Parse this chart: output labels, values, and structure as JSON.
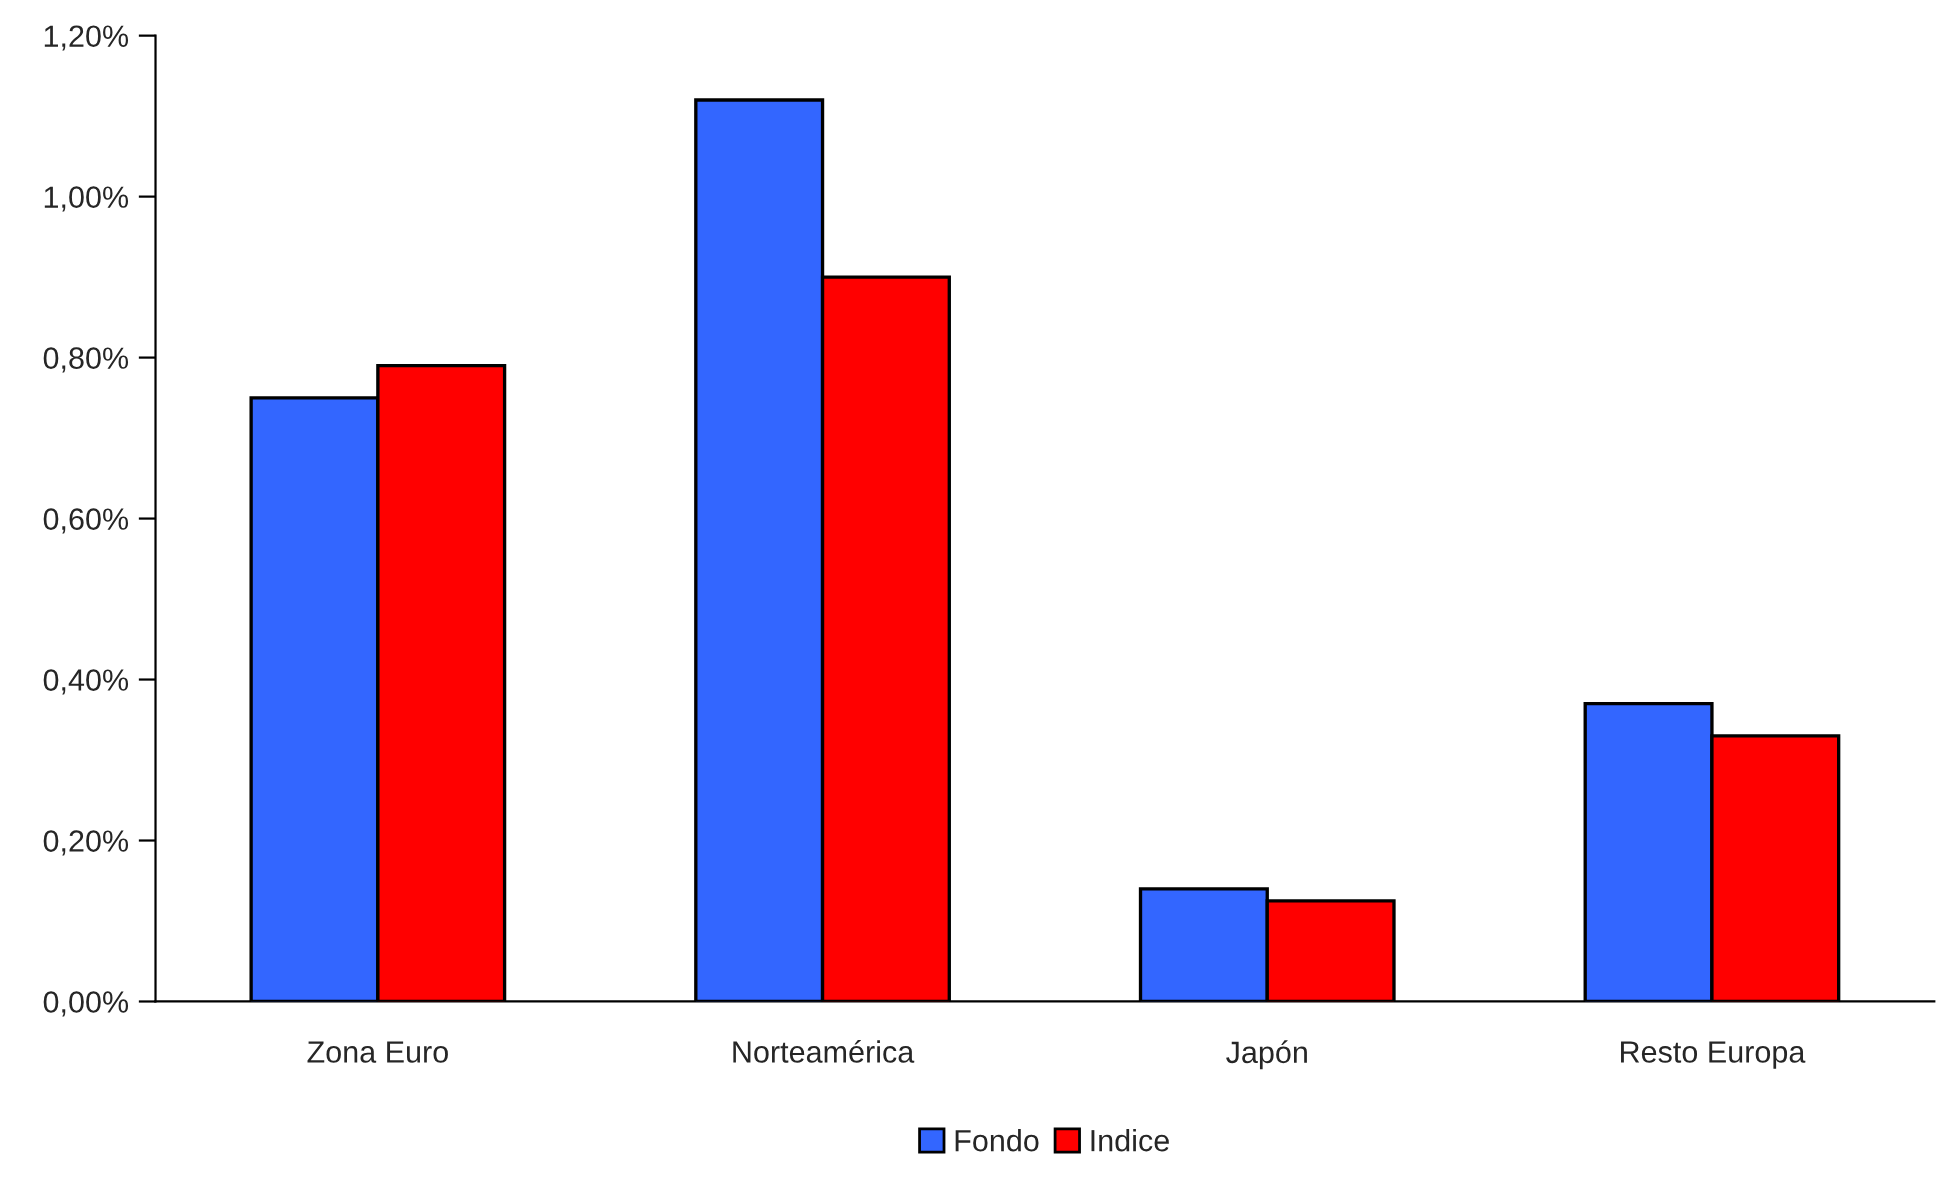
{
  "chart_data": {
    "type": "bar",
    "categories": [
      "Zona Euro",
      "Norteamérica",
      "Japón",
      "Resto Europa"
    ],
    "series": [
      {
        "name": "Fondo",
        "color": "#3366ff",
        "values": [
          0.75,
          1.12,
          0.14,
          0.37
        ]
      },
      {
        "name": "Indice",
        "color": "#ff0000",
        "values": [
          0.79,
          0.9,
          0.125,
          0.33
        ]
      }
    ],
    "ylim": [
      0,
      1.2
    ],
    "yticks": [
      {
        "value": 0,
        "label": "0,00%"
      },
      {
        "value": 0.2,
        "label": "0,20%"
      },
      {
        "value": 0.4,
        "label": "0,40%"
      },
      {
        "value": 0.6,
        "label": "0,60%"
      },
      {
        "value": 0.8,
        "label": "0,80%"
      },
      {
        "value": 1.0,
        "label": "1,00%"
      },
      {
        "value": 1.2,
        "label": "1,20%"
      }
    ],
    "grid": false,
    "legend": "bottom"
  }
}
